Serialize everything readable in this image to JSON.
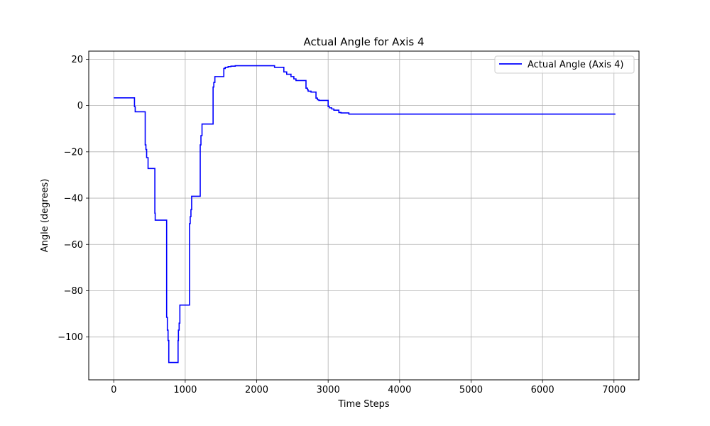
{
  "chart_data": {
    "type": "line",
    "title": "Actual Angle for Axis 4",
    "xlabel": "Time Steps",
    "ylabel": "Angle (degrees)",
    "xlim": [
      -350,
      7350
    ],
    "ylim": [
      -118.5,
      23.5
    ],
    "xticks": [
      0,
      1000,
      2000,
      3000,
      4000,
      5000,
      6000,
      7000
    ],
    "yticks": [
      20,
      0,
      -20,
      -40,
      -60,
      -80,
      -100
    ],
    "xtick_labels": [
      "0",
      "1000",
      "2000",
      "3000",
      "4000",
      "5000",
      "6000",
      "7000"
    ],
    "ytick_labels": [
      "20",
      "0",
      "−20",
      "−40",
      "−60",
      "−80",
      "−100"
    ],
    "grid": true,
    "legend_position": "top-right",
    "series": [
      {
        "name": "Actual Angle (Axis 4)",
        "color": "#0000ff",
        "x": [
          0,
          290,
          290,
          300,
          300,
          315,
          315,
          440,
          440,
          450,
          450,
          460,
          460,
          480,
          480,
          490,
          490,
          575,
          575,
          580,
          580,
          590,
          590,
          740,
          740,
          750,
          750,
          760,
          760,
          770,
          770,
          800,
          800,
          900,
          900,
          905,
          905,
          915,
          915,
          925,
          925,
          940,
          940,
          1060,
          1060,
          1070,
          1070,
          1080,
          1080,
          1090,
          1090,
          1100,
          1100,
          1210,
          1210,
          1220,
          1220,
          1235,
          1235,
          1250,
          1250,
          1390,
          1390,
          1400,
          1400,
          1415,
          1415,
          1430,
          1430,
          1540,
          1540,
          1560,
          1560,
          1600,
          1600,
          1640,
          1640,
          1700,
          1700,
          1800,
          1800,
          2250,
          2250,
          2380,
          2380,
          2420,
          2420,
          2480,
          2480,
          2520,
          2520,
          2550,
          2550,
          2580,
          2580,
          2690,
          2690,
          2710,
          2710,
          2720,
          2720,
          2760,
          2760,
          2830,
          2830,
          2850,
          2850,
          2870,
          2870,
          3000,
          3000,
          3020,
          3020,
          3050,
          3050,
          3080,
          3080,
          3150,
          3150,
          3180,
          3180,
          3290,
          3290,
          7020
        ],
        "y": [
          3.3,
          3.3,
          -0.5,
          -0.5,
          -2.7,
          -2.7,
          -2.7,
          -2.7,
          -17,
          -17,
          -19,
          -19,
          -22.5,
          -22.5,
          -27.2,
          -27.2,
          -27.2,
          -27.2,
          -46.5,
          -46.5,
          -49.5,
          -49.5,
          -49.5,
          -49.5,
          -91.5,
          -91.5,
          -97,
          -97,
          -101.5,
          -101.5,
          -111,
          -111,
          -111,
          -111,
          -101.5,
          -101.5,
          -97,
          -97,
          -94,
          -94,
          -86.2,
          -86.2,
          -86.2,
          -86.2,
          -51,
          -51,
          -48,
          -48,
          -45,
          -45,
          -39.2,
          -39.2,
          -39.2,
          -39.2,
          -17,
          -17,
          -13,
          -13,
          -8,
          -8,
          -8,
          -8,
          8,
          8,
          10,
          10,
          12.5,
          12.5,
          12.5,
          12.5,
          16,
          16,
          16.5,
          16.5,
          16.8,
          16.8,
          17,
          17,
          17.2,
          17.2,
          17.2,
          17.2,
          16.5,
          16.5,
          14.5,
          14.5,
          13.5,
          13.5,
          12.5,
          12.5,
          11.5,
          11.5,
          10.8,
          10.8,
          10.8,
          10.8,
          7.5,
          7.5,
          6.8,
          6.8,
          6.2,
          6.2,
          5.8,
          5.8,
          3.2,
          3.2,
          2.5,
          2.5,
          2.2,
          2.2,
          -0.5,
          -0.5,
          -1,
          -1,
          -1.5,
          -1.5,
          -2,
          -2,
          -3,
          -3,
          -3.2,
          -3.2,
          -3.7,
          -3.7
        ]
      }
    ]
  }
}
